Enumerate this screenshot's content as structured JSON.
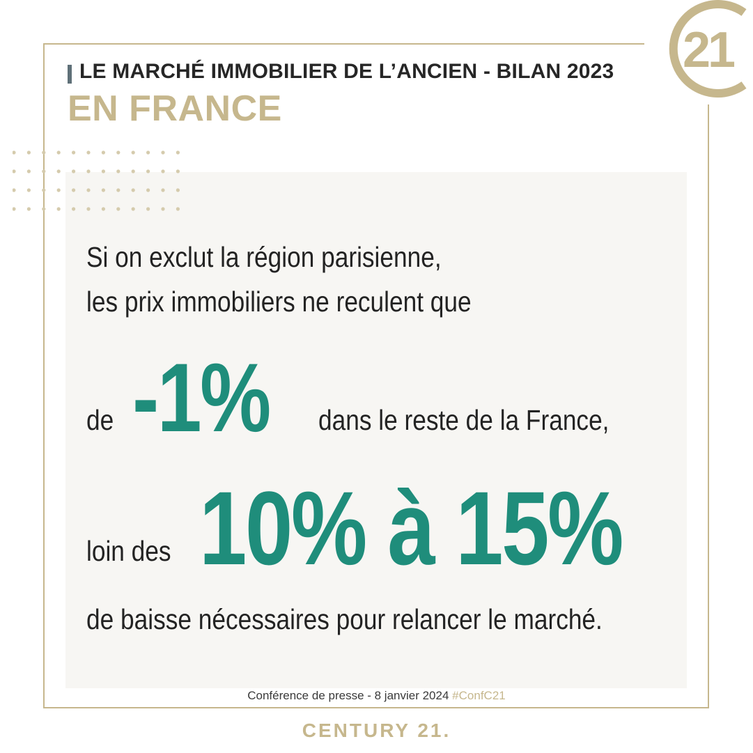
{
  "header": {
    "title_line1": "LE MARCHÉ IMMOBILIER DE L’ANCIEN - BILAN 2023",
    "title_line2": "EN FRANCE"
  },
  "logo": {
    "text": "21",
    "icon": "century21-c21-logo"
  },
  "body": {
    "line1": "Si on exclut la région parisienne,",
    "line2": "les prix immobiliers ne reculent que",
    "prefix_de": "de",
    "stat_small": "-1%",
    "suffix_small": "dans le reste de la France,",
    "prefix_loin": "loin des",
    "stat_big": "10% à 15%",
    "line_last": "de baisse nécessaires pour relancer le marché."
  },
  "footer": {
    "caption": "Conférence de presse - 8 janvier 2024",
    "hashtag": "#ConfC21",
    "brand": "CENTURY 21."
  },
  "colors": {
    "gold": "#c6b78d",
    "teal": "#1f8d7b",
    "dark": "#262626",
    "panel": "#f7f6f3"
  }
}
